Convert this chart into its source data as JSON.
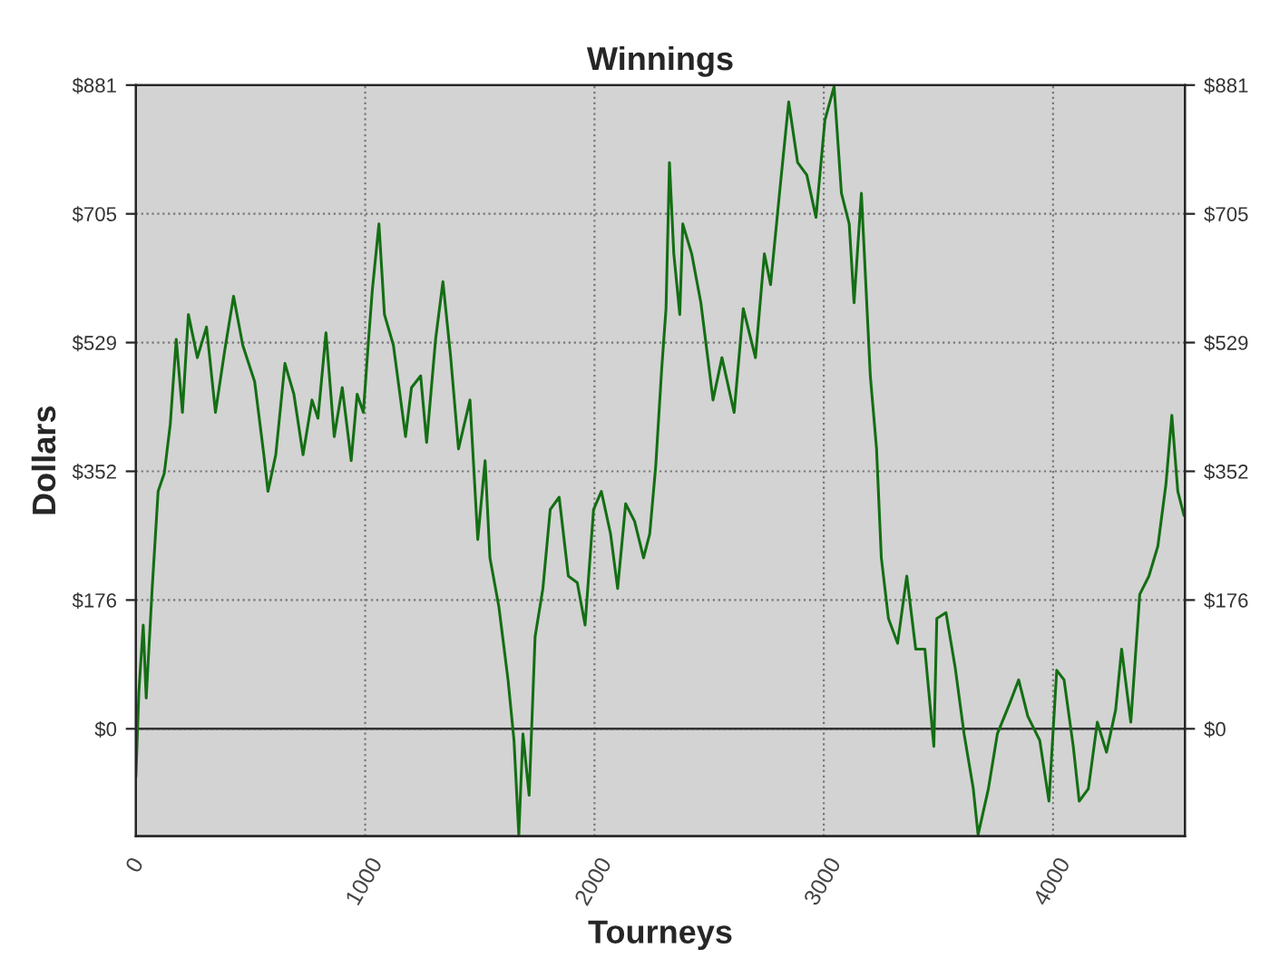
{
  "chart_data": {
    "type": "line",
    "title": "Winnings",
    "xlabel": "Tourneys",
    "ylabel": "Dollars",
    "xlim": [
      0,
      4575
    ],
    "xticks": [
      0,
      1000,
      2000,
      3000,
      4000
    ],
    "ylim": [
      -147,
      881
    ],
    "yticks": [
      {
        "value": 0,
        "label": "$0"
      },
      {
        "value": 176.2,
        "label": "$176"
      },
      {
        "value": 352.4,
        "label": "$352"
      },
      {
        "value": 528.6,
        "label": "$529"
      },
      {
        "value": 704.8,
        "label": "$705"
      },
      {
        "value": 881,
        "label": "$881"
      }
    ],
    "y2lim": [
      -147,
      881
    ],
    "y2ticks": [
      {
        "value": 0,
        "label": "$0"
      },
      {
        "value": 176.2,
        "label": "$176"
      },
      {
        "value": 352.4,
        "label": "$352"
      },
      {
        "value": 528.6,
        "label": "$529"
      },
      {
        "value": 704.8,
        "label": "$705"
      },
      {
        "value": 881,
        "label": "$881"
      }
    ],
    "grid": true,
    "legend": false,
    "marker": "none",
    "line_style": "solid",
    "ref_lines": [
      {
        "axis": "y",
        "value": 0,
        "label": null,
        "color": "#333333",
        "line_style": "solid"
      }
    ],
    "series": [
      {
        "color": "#146e14",
        "x": [
          0,
          13,
          32,
          45,
          71,
          97,
          124,
          150,
          176,
          203,
          229,
          268,
          308,
          347,
          387,
          426,
          466,
          518,
          558,
          576,
          610,
          650,
          689,
          729,
          768,
          794,
          829,
          865,
          900,
          939,
          965,
          992,
          1013,
          1031,
          1060,
          1084,
          1123,
          1176,
          1202,
          1242,
          1268,
          1307,
          1339,
          1373,
          1407,
          1457,
          1491,
          1523,
          1544,
          1583,
          1623,
          1649,
          1670,
          1688,
          1715,
          1741,
          1775,
          1807,
          1846,
          1886,
          1925,
          1959,
          1996,
          2030,
          2070,
          2101,
          2136,
          2175,
          2214,
          2241,
          2267,
          2293,
          2312,
          2327,
          2346,
          2372,
          2385,
          2424,
          2464,
          2517,
          2556,
          2609,
          2649,
          2702,
          2741,
          2768,
          2807,
          2847,
          2886,
          2926,
          2966,
          3005,
          3045,
          3077,
          3111,
          3132,
          3164,
          3203,
          3230,
          3251,
          3282,
          3322,
          3362,
          3401,
          3441,
          3480,
          3493,
          3533,
          3573,
          3612,
          3652,
          3673,
          3718,
          3757,
          3810,
          3850,
          3890,
          3942,
          3982,
          4016,
          4048,
          4088,
          4114,
          4154,
          4193,
          4233,
          4273,
          4299,
          4339,
          4378,
          4418,
          4457,
          4492,
          4518,
          4544,
          4571
        ],
        "values": [
          -66,
          51,
          142,
          42,
          192,
          325,
          350,
          417,
          533,
          433,
          567,
          508,
          550,
          433,
          517,
          592,
          525,
          475,
          375,
          325,
          375,
          500,
          458,
          375,
          450,
          425,
          542,
          400,
          467,
          367,
          458,
          433,
          525,
          600,
          691,
          567,
          525,
          400,
          467,
          483,
          392,
          533,
          612,
          508,
          383,
          450,
          259,
          367,
          234,
          167,
          67,
          -16,
          -145,
          -7,
          -91,
          126,
          192,
          300,
          317,
          209,
          200,
          142,
          300,
          325,
          267,
          192,
          308,
          284,
          234,
          267,
          359,
          492,
          575,
          775,
          650,
          567,
          691,
          650,
          583,
          450,
          508,
          433,
          575,
          508,
          650,
          608,
          733,
          858,
          775,
          758,
          700,
          833,
          879,
          733,
          691,
          583,
          733,
          483,
          384,
          234,
          151,
          117,
          209,
          109,
          109,
          -24,
          151,
          159,
          84,
          -7,
          -82,
          -145,
          -82,
          -7,
          34,
          67,
          17,
          -16,
          -99,
          80,
          67,
          -24,
          -99,
          -82,
          9,
          -32,
          26,
          109,
          9,
          184,
          209,
          250,
          334,
          429,
          325,
          292
        ]
      }
    ]
  }
}
